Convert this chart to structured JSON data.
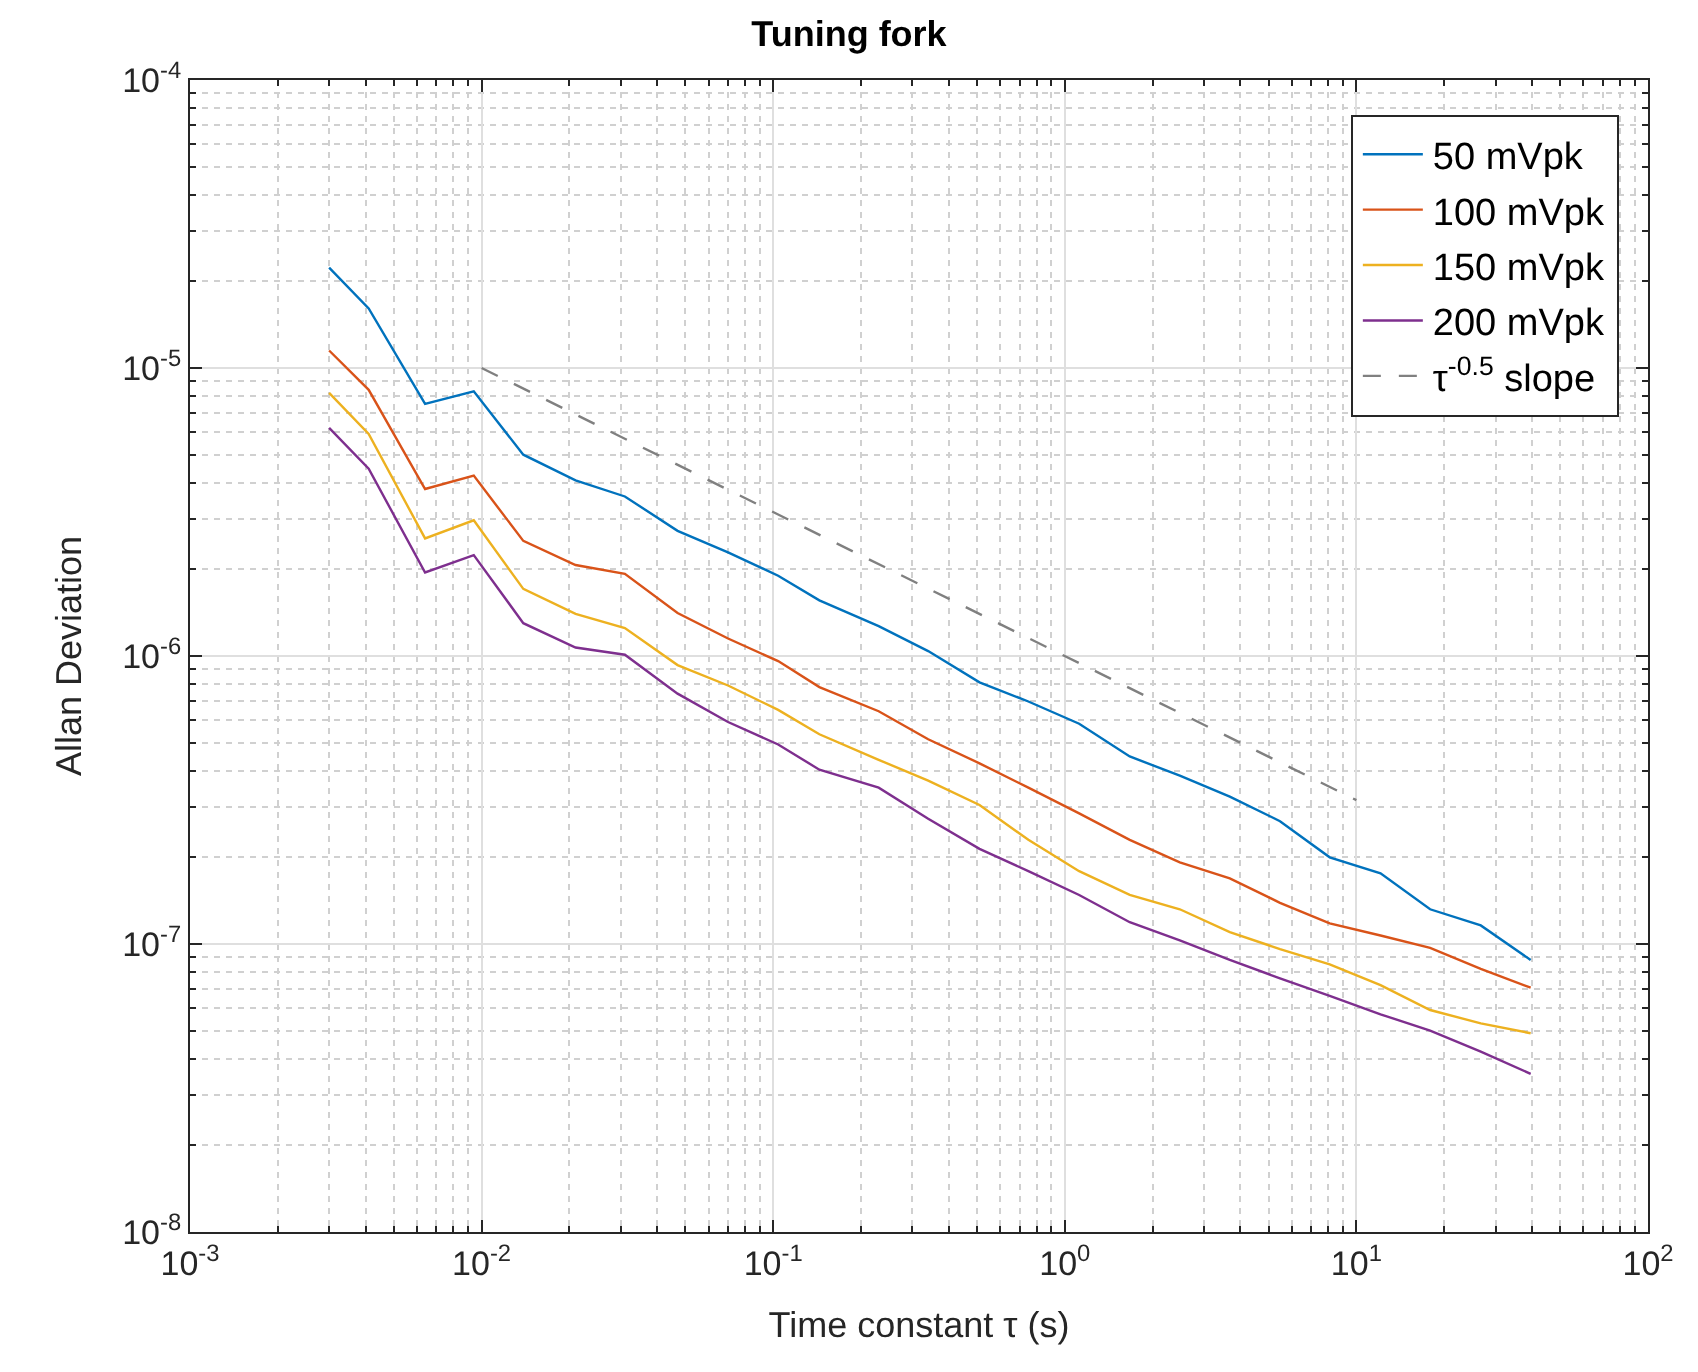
{
  "chart_data": {
    "type": "line",
    "title": "Tuning fork",
    "xlabel": "Time constant τ (s)",
    "ylabel": "Allan Deviation",
    "x": [
      0.003,
      0.0041,
      0.0064,
      0.0094,
      0.0139,
      0.021,
      0.031,
      0.047,
      0.07,
      0.104,
      0.144,
      0.23,
      0.34,
      0.51,
      0.75,
      1.12,
      1.67,
      2.48,
      3.68,
      5.47,
      8.1,
      12.1,
      17.9,
      26.7,
      39.6
    ],
    "series": [
      {
        "name": "50 mVpk",
        "color": "#0072bd",
        "values": [
          2.23e-05,
          1.61e-05,
          7.5e-06,
          8.3e-06,
          5e-06,
          4.07e-06,
          3.58e-06,
          2.72e-06,
          2.29e-06,
          1.9e-06,
          1.56e-06,
          1.27e-06,
          1.04e-06,
          8.1e-07,
          6.95e-07,
          5.82e-07,
          4.48e-07,
          3.84e-07,
          3.25e-07,
          2.67e-07,
          2e-07,
          1.76e-07,
          1.32e-07,
          1.16e-07,
          8.8e-08
        ]
      },
      {
        "name": "100 mVpk",
        "color": "#d95319",
        "values": [
          1.15e-05,
          8.4e-06,
          3.8e-06,
          4.23e-06,
          2.51e-06,
          2.07e-06,
          1.93e-06,
          1.41e-06,
          1.15e-06,
          9.6e-07,
          7.8e-07,
          6.43e-07,
          5.14e-07,
          4.24e-07,
          3.49e-07,
          2.84e-07,
          2.3e-07,
          1.92e-07,
          1.69e-07,
          1.39e-07,
          1.18e-07,
          1.07e-07,
          9.7e-08,
          8.2e-08,
          7.05e-08
        ]
      },
      {
        "name": "150 mVpk",
        "color": "#edb120",
        "values": [
          8.2e-06,
          5.9e-06,
          2.56e-06,
          2.96e-06,
          1.71e-06,
          1.4e-06,
          1.25e-06,
          9.3e-07,
          7.9e-07,
          6.5e-07,
          5.35e-07,
          4.36e-07,
          3.69e-07,
          3.04e-07,
          2.3e-07,
          1.79e-07,
          1.48e-07,
          1.32e-07,
          1.1e-07,
          9.6e-08,
          8.5e-08,
          7.2e-08,
          5.9e-08,
          5.3e-08,
          4.9e-08
        ]
      },
      {
        "name": "200 mVpk",
        "color": "#7e2f8e",
        "values": [
          6.2e-06,
          4.47e-06,
          1.95e-06,
          2.24e-06,
          1.3e-06,
          1.07e-06,
          1.01e-06,
          7.4e-07,
          5.9e-07,
          4.93e-07,
          4.03e-07,
          3.49e-07,
          2.72e-07,
          2.14e-07,
          1.79e-07,
          1.48e-07,
          1.19e-07,
          1.03e-07,
          8.8e-08,
          7.6e-08,
          6.6e-08,
          5.7e-08,
          5e-08,
          4.23e-08,
          3.54e-08
        ]
      },
      {
        "name": "τ$^{-0.5}$ slope",
        "color": "#808080",
        "line_style": "dashed",
        "x": [
          0.01,
          10
        ],
        "values": [
          1e-05,
          3.16e-07
        ]
      }
    ],
    "log": "xy",
    "xlim": [
      0.001,
      100
    ],
    "ylim": [
      1e-08,
      0.0001
    ],
    "xticks": [
      {
        "value": 0.001,
        "label": "10$^{-3}$"
      },
      {
        "value": 0.01,
        "label": "10$^{-2}$"
      },
      {
        "value": 0.1,
        "label": "10$^{-1}$"
      },
      {
        "value": 1,
        "label": "10$^{0}$"
      },
      {
        "value": 10,
        "label": "10$^{1}$"
      },
      {
        "value": 100,
        "label": "10$^{2}$"
      }
    ],
    "yticks": [
      {
        "value": 1e-08,
        "label": "10$^{-8}$"
      },
      {
        "value": 1e-07,
        "label": "10$^{-7}$"
      },
      {
        "value": 1e-06,
        "label": "10$^{-6}$"
      },
      {
        "value": 1e-05,
        "label": "10$^{-5}$"
      },
      {
        "value": 0.0001,
        "label": "10$^{-4}$"
      }
    ],
    "grid": true,
    "legend": "top right",
    "marker": "none",
    "line_style": "solid"
  }
}
